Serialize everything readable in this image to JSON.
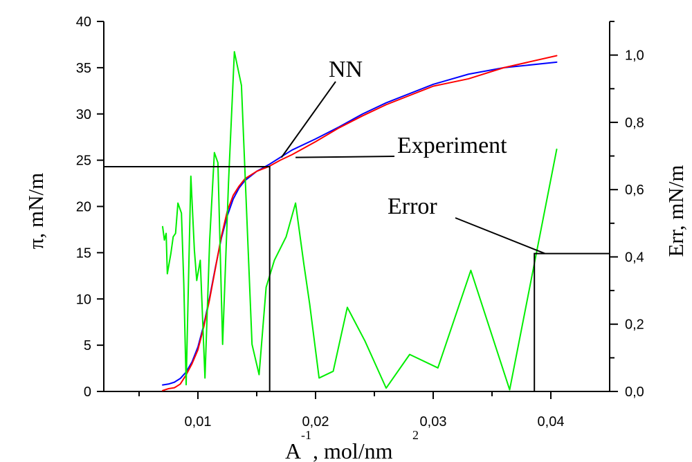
{
  "chart_data": {
    "type": "line",
    "x_axis": {
      "label_base": "A",
      "label_exp": "-1",
      "label_rest": ", mol/nm",
      "label_unit_exp": "2",
      "range": [
        0.002,
        0.045
      ],
      "ticks": [
        0.01,
        0.02,
        0.03,
        0.04
      ],
      "tick_labels": [
        "0,01",
        "0,02",
        "0,03",
        "0,04"
      ]
    },
    "y_left_axis": {
      "label": "π, mN/m",
      "range": [
        0,
        40
      ],
      "ticks": [
        0,
        5,
        10,
        15,
        20,
        25,
        30,
        35,
        40
      ],
      "tick_labels": [
        "0",
        "5",
        "10",
        "15",
        "20",
        "25",
        "30",
        "35",
        "40"
      ]
    },
    "y_right_axis": {
      "label": "Err, mN/m",
      "range": [
        0,
        1.1
      ],
      "ticks": [
        0,
        0.2,
        0.4,
        0.6,
        0.8,
        1.0
      ],
      "tick_labels": [
        "0,0",
        "0,2",
        "0,4",
        "0,6",
        "0,8",
        "1,0"
      ]
    },
    "series": [
      {
        "name": "NN",
        "color": "#0000ff",
        "axis": "left",
        "points": [
          [
            0.007,
            0.7
          ],
          [
            0.0075,
            0.8
          ],
          [
            0.008,
            1.0
          ],
          [
            0.0085,
            1.4
          ],
          [
            0.009,
            2.1
          ],
          [
            0.0095,
            3.2
          ],
          [
            0.01,
            4.8
          ],
          [
            0.0105,
            7.2
          ],
          [
            0.011,
            10.2
          ],
          [
            0.0115,
            13.5
          ],
          [
            0.012,
            16.6
          ],
          [
            0.0125,
            19.0
          ],
          [
            0.013,
            20.8
          ],
          [
            0.0135,
            22.0
          ],
          [
            0.014,
            22.8
          ],
          [
            0.015,
            23.8
          ],
          [
            0.016,
            24.5
          ],
          [
            0.017,
            25.3
          ],
          [
            0.018,
            26.1
          ],
          [
            0.02,
            27.3
          ],
          [
            0.022,
            28.6
          ],
          [
            0.024,
            30.0
          ],
          [
            0.026,
            31.2
          ],
          [
            0.028,
            32.2
          ],
          [
            0.03,
            33.2
          ],
          [
            0.033,
            34.3
          ],
          [
            0.036,
            35.0
          ],
          [
            0.0405,
            35.6
          ]
        ]
      },
      {
        "name": "Experiment",
        "color": "#ff0000",
        "axis": "left",
        "points": [
          [
            0.007,
            0.1
          ],
          [
            0.0075,
            0.3
          ],
          [
            0.008,
            0.4
          ],
          [
            0.0085,
            0.8
          ],
          [
            0.009,
            1.8
          ],
          [
            0.0095,
            3.0
          ],
          [
            0.01,
            4.5
          ],
          [
            0.0105,
            7.0
          ],
          [
            0.011,
            10.0
          ],
          [
            0.0115,
            13.4
          ],
          [
            0.012,
            16.8
          ],
          [
            0.0125,
            19.5
          ],
          [
            0.013,
            21.2
          ],
          [
            0.0135,
            22.2
          ],
          [
            0.014,
            23.0
          ],
          [
            0.015,
            23.8
          ],
          [
            0.016,
            24.3
          ],
          [
            0.017,
            25.0
          ],
          [
            0.018,
            25.6
          ],
          [
            0.02,
            27.0
          ],
          [
            0.022,
            28.5
          ],
          [
            0.024,
            29.8
          ],
          [
            0.026,
            31.0
          ],
          [
            0.028,
            32.0
          ],
          [
            0.03,
            33.0
          ],
          [
            0.033,
            33.8
          ],
          [
            0.036,
            35.0
          ],
          [
            0.0405,
            36.3
          ]
        ]
      },
      {
        "name": "Error",
        "color": "#00ee00",
        "axis": "right",
        "points": [
          [
            0.007,
            0.49
          ],
          [
            0.00715,
            0.45
          ],
          [
            0.0073,
            0.47
          ],
          [
            0.0074,
            0.35
          ],
          [
            0.0077,
            0.41
          ],
          [
            0.0079,
            0.46
          ],
          [
            0.0081,
            0.47
          ],
          [
            0.0083,
            0.56
          ],
          [
            0.0086,
            0.53
          ],
          [
            0.0088,
            0.32
          ],
          [
            0.009,
            0.02
          ],
          [
            0.0094,
            0.64
          ],
          [
            0.0097,
            0.42
          ],
          [
            0.0099,
            0.33
          ],
          [
            0.0102,
            0.39
          ],
          [
            0.0106,
            0.04
          ],
          [
            0.011,
            0.45
          ],
          [
            0.0114,
            0.71
          ],
          [
            0.0117,
            0.68
          ],
          [
            0.0121,
            0.14
          ],
          [
            0.0126,
            0.62
          ],
          [
            0.0131,
            1.01
          ],
          [
            0.0137,
            0.91
          ],
          [
            0.0146,
            0.14
          ],
          [
            0.0152,
            0.05
          ],
          [
            0.0158,
            0.31
          ],
          [
            0.0165,
            0.39
          ],
          [
            0.0175,
            0.46
          ],
          [
            0.0183,
            0.56
          ],
          [
            0.019,
            0.38
          ],
          [
            0.0195,
            0.26
          ],
          [
            0.0203,
            0.04
          ],
          [
            0.0215,
            0.06
          ],
          [
            0.0227,
            0.25
          ],
          [
            0.0242,
            0.15
          ],
          [
            0.026,
            0.01
          ],
          [
            0.028,
            0.11
          ],
          [
            0.0304,
            0.07
          ],
          [
            0.0332,
            0.36
          ],
          [
            0.0365,
            0.005
          ],
          [
            0.0405,
            0.72
          ]
        ]
      }
    ],
    "annotations": [
      {
        "text": "NN",
        "target": [
          0.0171,
          25.3
        ]
      },
      {
        "text": "Experiment",
        "target": [
          0.0183,
          25.3
        ]
      },
      {
        "text": "Error",
        "target": [
          0.0395,
          0.41
        ]
      }
    ],
    "drop_lines": [
      {
        "axis": "left",
        "x": 0.0161,
        "y": 24.3,
        "to": "left-axis"
      },
      {
        "axis": "right",
        "x": 0.0386,
        "y": 0.41,
        "to": "right-axis"
      }
    ],
    "grid": false,
    "legend": "none"
  }
}
